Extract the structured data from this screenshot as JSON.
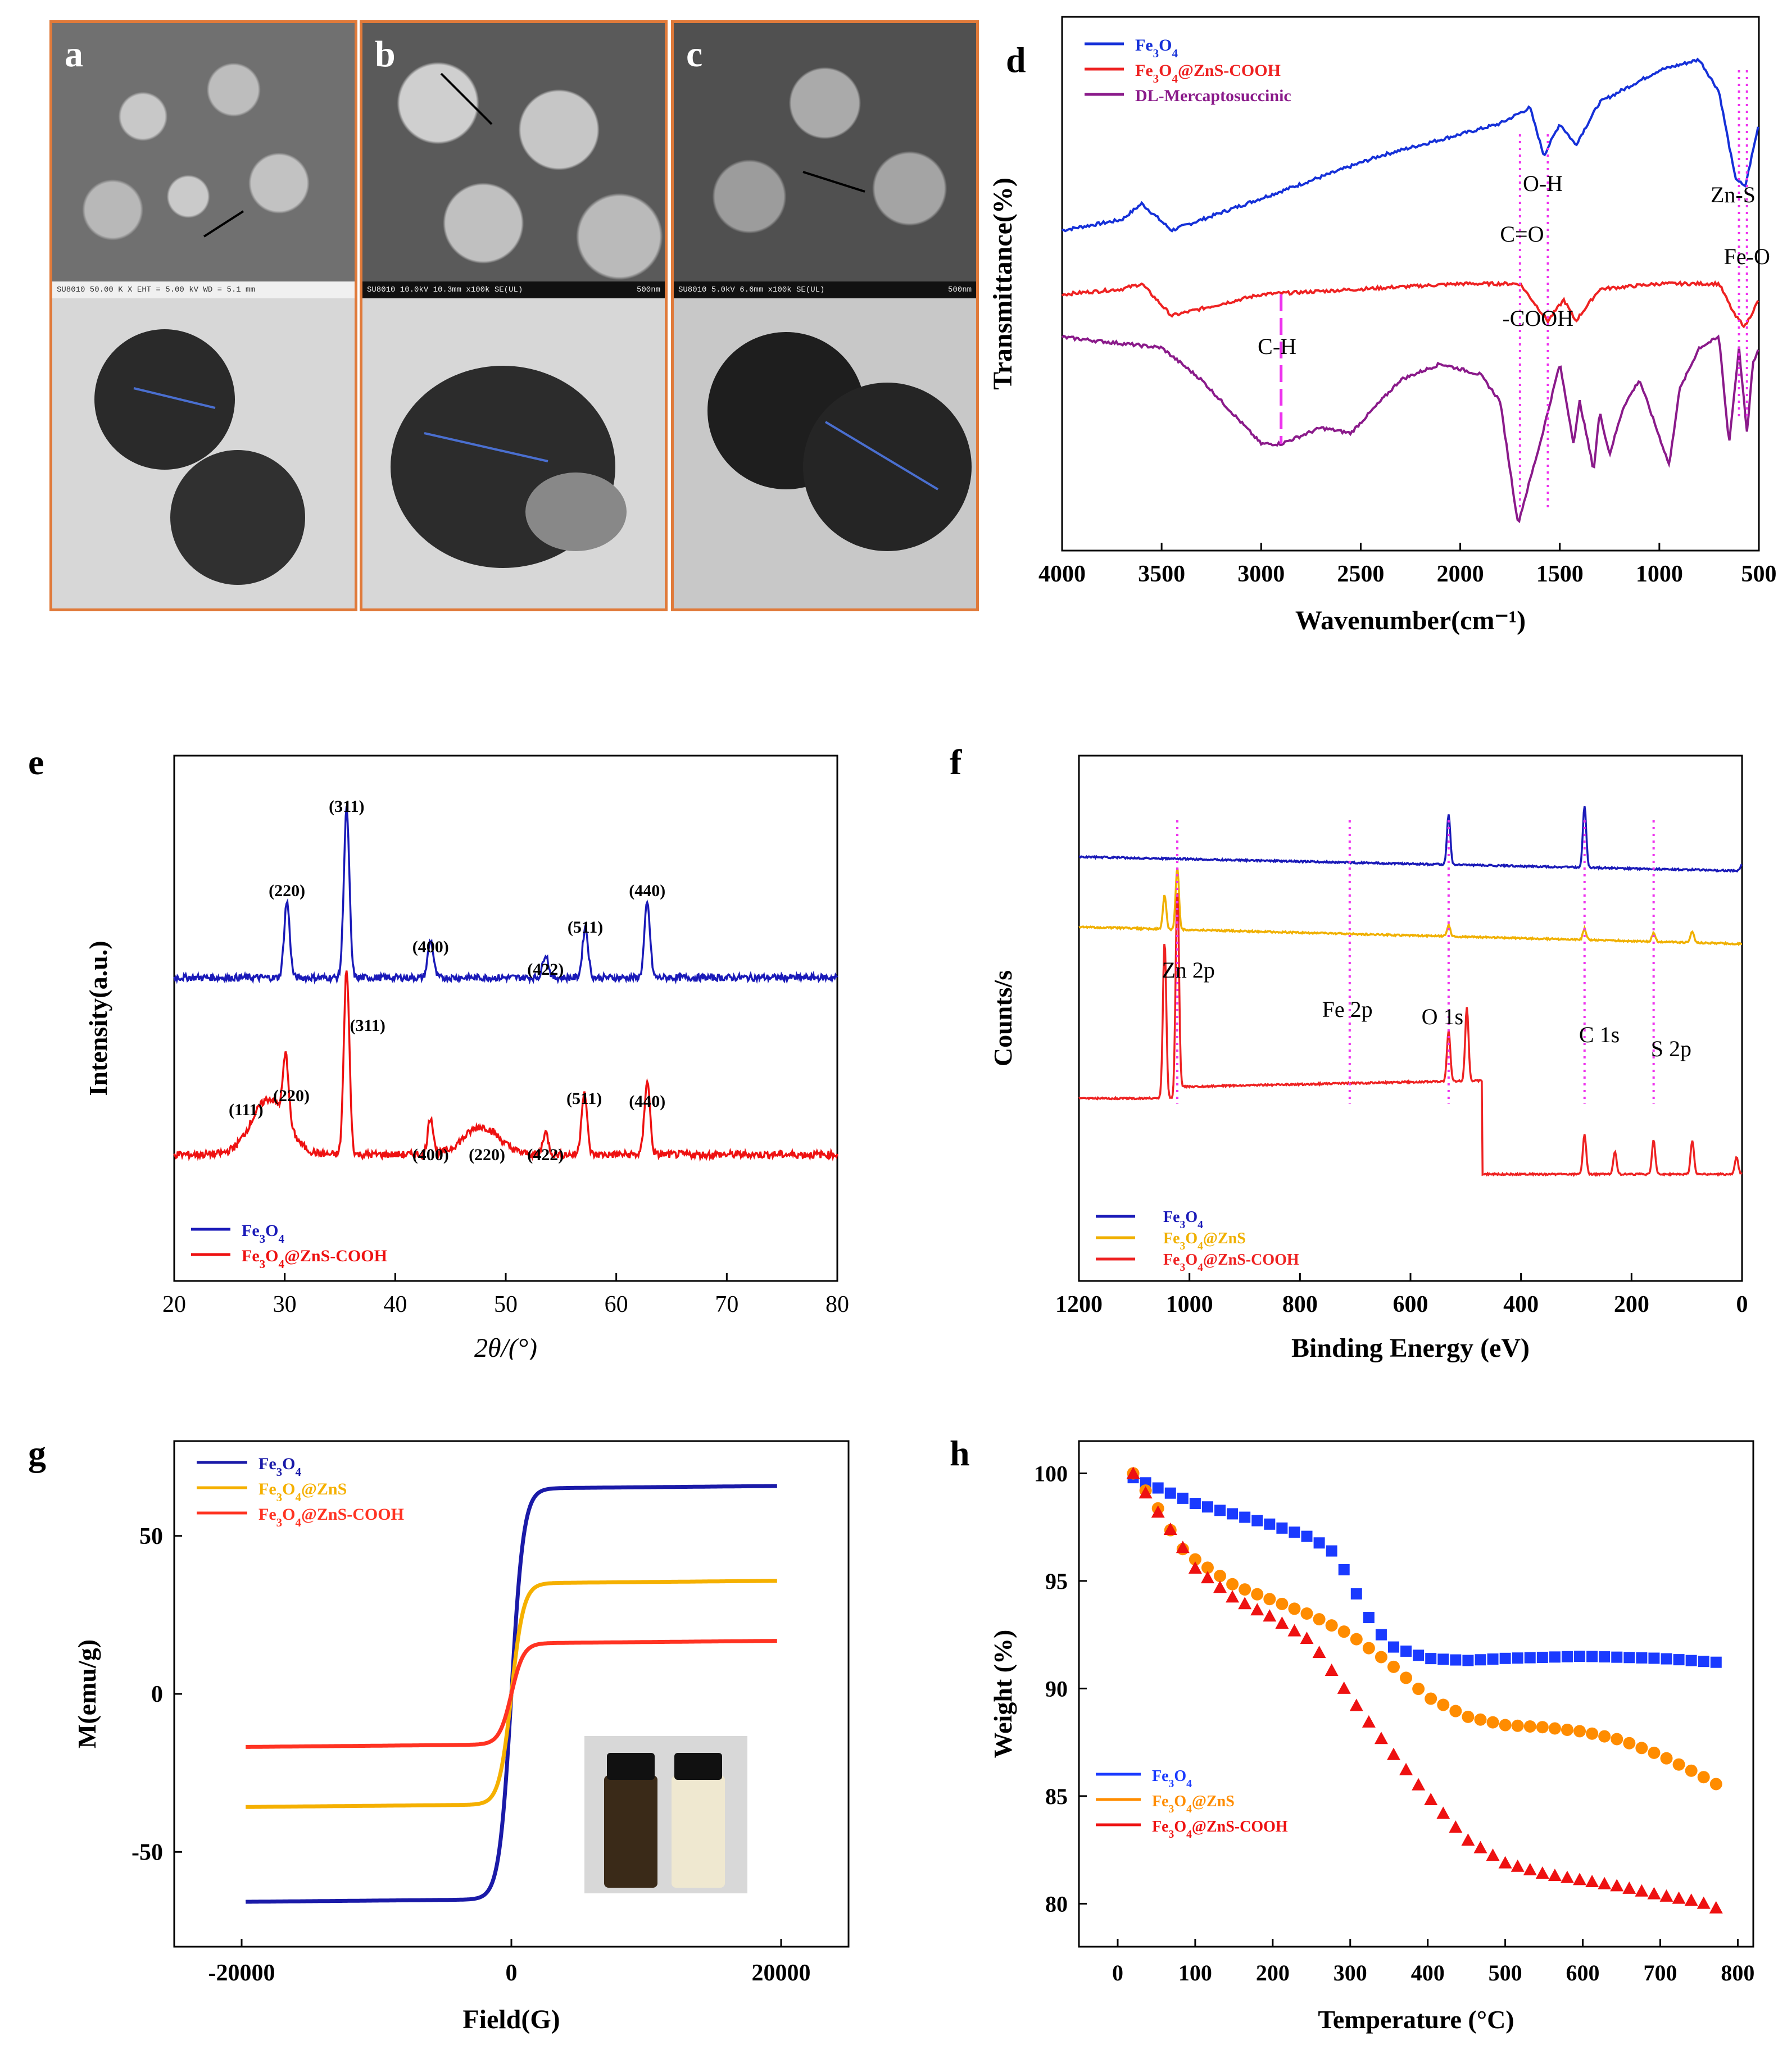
{
  "figure": {
    "panel_letters": [
      "a",
      "b",
      "c",
      "d",
      "e",
      "f",
      "g",
      "h"
    ],
    "sem_labels": {
      "a": "SU8010 50.00 K X   EHT = 5.00 kV   WD = 5.1 mm",
      "b": "SU8010 10.0kV 10.3mm x100k SE(UL)",
      "b_scale": "500nm",
      "c": "SU8010 5.0kV 6.6mm x100k SE(UL)",
      "c_scale": "500nm"
    }
  },
  "chart_data": [
    {
      "panel": "d",
      "type": "line",
      "title": "",
      "xlabel": "Wavenumber(cm⁻¹)",
      "ylabel": "Transmittance(%)",
      "xlim": [
        4000,
        500
      ],
      "xticks": [
        "4000",
        "3500",
        "3000",
        "2500",
        "2000",
        "1500",
        "1000",
        "500"
      ],
      "legend": [
        "Fe3O4",
        "Fe3O4@ZnS-COOH",
        "DL-Mercaptosuccinic"
      ],
      "colors": [
        "#1530d8",
        "#ee2222",
        "#8a1a8a"
      ],
      "series": [
        {
          "name": "Fe3O4",
          "x": [
            4000,
            3700,
            3600,
            3450,
            3000,
            2400,
            1800,
            1650,
            1580,
            1500,
            1420,
            1300,
            1000,
            800,
            700,
            620,
            570,
            500
          ],
          "y": [
            60,
            62,
            65,
            60,
            66,
            74,
            80,
            83,
            74,
            80,
            76,
            84,
            90,
            92,
            86,
            70,
            68,
            80
          ]
        },
        {
          "name": "Fe3O4@ZnS-COOH",
          "x": [
            4000,
            3700,
            3600,
            3450,
            3000,
            2500,
            2000,
            1700,
            1600,
            1560,
            1480,
            1420,
            1300,
            1000,
            700,
            620,
            570,
            500
          ],
          "y": [
            48,
            49,
            50,
            44,
            48,
            49,
            50,
            50,
            45,
            43,
            47,
            43,
            49,
            50,
            50,
            44,
            42,
            47
          ]
        },
        {
          "name": "DL-Mercaptosuccinic",
          "x": [
            4000,
            3500,
            3300,
            3000,
            2900,
            2700,
            2550,
            2300,
            2100,
            1900,
            1800,
            1710,
            1600,
            1500,
            1430,
            1400,
            1330,
            1300,
            1250,
            1180,
            1100,
            950,
            900,
            800,
            700,
            650,
            600,
            560,
            530,
            500
          ],
          "y": [
            40,
            38,
            32,
            20,
            20,
            23,
            22,
            32,
            35,
            33,
            28,
            5,
            20,
            35,
            20,
            28,
            15,
            26,
            18,
            27,
            32,
            16,
            30,
            38,
            40,
            20,
            38,
            22,
            35,
            38
          ]
        }
      ],
      "annotations": [
        "O-H",
        "Zn-S",
        "C=O",
        "Fe-O",
        "-COOH",
        "C-H"
      ]
    },
    {
      "panel": "e",
      "type": "line",
      "title": "",
      "xlabel": "2θ/(°)",
      "ylabel": "Intensity(a.u.)",
      "xlim": [
        20,
        80
      ],
      "xticks": [
        "20",
        "30",
        "40",
        "50",
        "60",
        "70",
        "80"
      ],
      "legend": [
        "Fe3O4",
        "Fe3O4@ZnS-COOH"
      ],
      "colors": [
        "#1a1ab8",
        "#ee1111"
      ],
      "series": [
        {
          "name": "Fe3O4",
          "peaks": [
            [
              30.2,
              0.45
            ],
            [
              35.6,
              1.0
            ],
            [
              43.2,
              0.22
            ],
            [
              53.6,
              0.14
            ],
            [
              57.2,
              0.3
            ],
            [
              62.8,
              0.44
            ]
          ]
        },
        {
          "name": "Fe3O4@ZnS-COOH",
          "peaks": [
            [
              28.6,
              0.3
            ],
            [
              30.1,
              0.35
            ],
            [
              35.6,
              1.0
            ],
            [
              43.2,
              0.2
            ],
            [
              47.8,
              0.15
            ],
            [
              53.6,
              0.12
            ],
            [
              57.1,
              0.34
            ],
            [
              62.8,
              0.4
            ]
          ]
        }
      ],
      "peak_labels_blue": [
        "(220)",
        "(311)",
        "(400)",
        "(422)",
        "(511)",
        "(440)"
      ],
      "peak_labels_red": [
        "(111)",
        "(220)",
        "(311)",
        "(400)",
        "(220)",
        "(422)",
        "(511)",
        "(440)"
      ]
    },
    {
      "panel": "f",
      "type": "line",
      "title": "",
      "xlabel": "Binding Energy (eV)",
      "ylabel": "Counts/s",
      "xlim": [
        1200,
        0
      ],
      "xticks": [
        "1200",
        "1000",
        "800",
        "600",
        "400",
        "200",
        "0"
      ],
      "legend": [
        "Fe3O4",
        "Fe3O4@ZnS",
        "Fe3O4@ZnS-COOH"
      ],
      "colors": [
        "#1a1ab8",
        "#f0b000",
        "#ee2222"
      ],
      "annotations": [
        "Zn 2p",
        "Fe 2p",
        "O 1s",
        "C 1s",
        "S 2p"
      ]
    },
    {
      "panel": "g",
      "type": "line",
      "title": "",
      "xlabel": "Field(G)",
      "ylabel": "M(emu/g)",
      "xlim": [
        -25000,
        25000
      ],
      "ylim": [
        -80,
        80
      ],
      "xticks": [
        "-20000",
        "0",
        "20000"
      ],
      "yticks": [
        "50",
        "0",
        "-50"
      ],
      "legend": [
        "Fe3O4",
        "Fe3O4@ZnS",
        "Fe3O4@ZnS-COOH"
      ],
      "colors": [
        "#1a1aa8",
        "#f5b000",
        "#ff3322"
      ],
      "series": [
        {
          "name": "Fe3O4",
          "Ms": 65
        },
        {
          "name": "Fe3O4@ZnS",
          "Ms": 35
        },
        {
          "name": "Fe3O4@ZnS-COOH",
          "Ms": 16
        }
      ]
    },
    {
      "panel": "h",
      "type": "scatter",
      "title": "",
      "xlabel": "Temperature (°C)",
      "ylabel": "Weight (%)",
      "xlim": [
        -50,
        820
      ],
      "ylim": [
        78,
        101.5
      ],
      "xticks": [
        "0",
        "100",
        "200",
        "300",
        "400",
        "500",
        "600",
        "700",
        "800"
      ],
      "yticks": [
        "100",
        "95",
        "90",
        "85",
        "80"
      ],
      "legend": [
        "Fe3O4",
        "Fe3O4@ZnS",
        "Fe3O4@ZnS-COOH"
      ],
      "colors": [
        "#1a3aff",
        "#ff8c00",
        "#ee1111"
      ],
      "series": [
        {
          "name": "Fe3O4",
          "x": [
            20,
            100,
            200,
            250,
            280,
            300,
            320,
            350,
            400,
            450,
            500,
            600,
            700,
            780
          ],
          "y": [
            99.8,
            98.6,
            97.6,
            97,
            96.3,
            95,
            93.5,
            92,
            91.4,
            91.3,
            91.4,
            91.5,
            91.4,
            91.2
          ]
        },
        {
          "name": "Fe3O4@ZnS",
          "x": [
            20,
            50,
            80,
            100,
            150,
            200,
            250,
            300,
            350,
            400,
            450,
            500,
            550,
            600,
            650,
            700,
            750,
            780
          ],
          "y": [
            100,
            98.5,
            96.6,
            96,
            94.8,
            94.1,
            93.4,
            92.5,
            91.2,
            89.6,
            88.7,
            88.3,
            88.2,
            88,
            87.6,
            86.9,
            86,
            85.4
          ]
        },
        {
          "name": "Fe3O4@ZnS-COOH",
          "x": [
            20,
            50,
            80,
            100,
            150,
            200,
            250,
            300,
            350,
            400,
            450,
            500,
            550,
            600,
            650,
            700,
            750,
            780
          ],
          "y": [
            100,
            98.3,
            96.8,
            95.6,
            94.2,
            93.3,
            92.2,
            89.6,
            87.2,
            85,
            83,
            81.9,
            81.4,
            81.1,
            80.8,
            80.4,
            80.1,
            79.7
          ]
        }
      ]
    }
  ]
}
